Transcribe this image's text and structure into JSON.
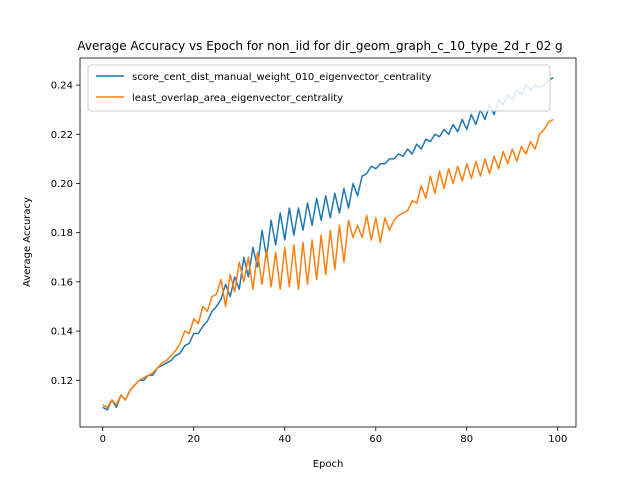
{
  "chart_data": {
    "type": "line",
    "title": "Average Accuracy vs Epoch for non_iid for dir_geom_graph_c_10_type_2d_r_02 g",
    "xlabel": "Epoch",
    "ylabel": "Average Accuracy",
    "xlim": [
      -5,
      104
    ],
    "ylim": [
      0.101,
      0.251
    ],
    "xticks": [
      0,
      20,
      40,
      60,
      80,
      100
    ],
    "xtick_labels": [
      "0",
      "20",
      "40",
      "60",
      "80",
      "100"
    ],
    "yticks": [
      0.12,
      0.14,
      0.16,
      0.18,
      0.2,
      0.22,
      0.24
    ],
    "ytick_labels": [
      "0.12",
      "0.14",
      "0.16",
      "0.18",
      "0.20",
      "0.22",
      "0.24"
    ],
    "grid": false,
    "legend_position": "top-left",
    "x": [
      0,
      1,
      2,
      3,
      4,
      5,
      6,
      7,
      8,
      9,
      10,
      11,
      12,
      13,
      14,
      15,
      16,
      17,
      18,
      19,
      20,
      21,
      22,
      23,
      24,
      25,
      26,
      27,
      28,
      29,
      30,
      31,
      32,
      33,
      34,
      35,
      36,
      37,
      38,
      39,
      40,
      41,
      42,
      43,
      44,
      45,
      46,
      47,
      48,
      49,
      50,
      51,
      52,
      53,
      54,
      55,
      56,
      57,
      58,
      59,
      60,
      61,
      62,
      63,
      64,
      65,
      66,
      67,
      68,
      69,
      70,
      71,
      72,
      73,
      74,
      75,
      76,
      77,
      78,
      79,
      80,
      81,
      82,
      83,
      84,
      85,
      86,
      87,
      88,
      89,
      90,
      91,
      92,
      93,
      94,
      95,
      96,
      97,
      98,
      99
    ],
    "series": [
      {
        "name": "score_cent_dist_manual_weight_010_eigenvector_centrality",
        "color": "#1f77b4",
        "values": [
          0.109,
          0.108,
          0.112,
          0.109,
          0.114,
          0.112,
          0.116,
          0.118,
          0.12,
          0.12,
          0.122,
          0.122,
          0.125,
          0.126,
          0.127,
          0.128,
          0.13,
          0.131,
          0.134,
          0.135,
          0.139,
          0.139,
          0.142,
          0.144,
          0.148,
          0.15,
          0.153,
          0.159,
          0.154,
          0.162,
          0.157,
          0.17,
          0.162,
          0.174,
          0.166,
          0.181,
          0.17,
          0.185,
          0.175,
          0.188,
          0.177,
          0.19,
          0.179,
          0.19,
          0.181,
          0.192,
          0.183,
          0.194,
          0.185,
          0.195,
          0.186,
          0.196,
          0.188,
          0.198,
          0.19,
          0.2,
          0.195,
          0.203,
          0.204,
          0.207,
          0.206,
          0.208,
          0.208,
          0.21,
          0.21,
          0.212,
          0.211,
          0.214,
          0.212,
          0.216,
          0.214,
          0.218,
          0.217,
          0.22,
          0.219,
          0.222,
          0.22,
          0.224,
          0.221,
          0.226,
          0.222,
          0.228,
          0.224,
          0.23,
          0.226,
          0.232,
          0.228,
          0.234,
          0.232,
          0.236,
          0.234,
          0.238,
          0.236,
          0.24,
          0.238,
          0.24,
          0.239,
          0.24,
          0.242,
          0.243
        ]
      },
      {
        "name": "least_overlap_area_eigenvector_centrality",
        "color": "#ff7f0e",
        "values": [
          0.11,
          0.109,
          0.112,
          0.11,
          0.114,
          0.112,
          0.116,
          0.118,
          0.12,
          0.121,
          0.122,
          0.123,
          0.125,
          0.127,
          0.128,
          0.13,
          0.132,
          0.135,
          0.14,
          0.139,
          0.145,
          0.143,
          0.15,
          0.148,
          0.154,
          0.155,
          0.161,
          0.15,
          0.163,
          0.156,
          0.168,
          0.16,
          0.17,
          0.157,
          0.172,
          0.159,
          0.173,
          0.158,
          0.172,
          0.157,
          0.174,
          0.158,
          0.175,
          0.157,
          0.176,
          0.159,
          0.177,
          0.161,
          0.179,
          0.163,
          0.181,
          0.165,
          0.183,
          0.168,
          0.185,
          0.178,
          0.183,
          0.178,
          0.187,
          0.177,
          0.186,
          0.176,
          0.186,
          0.181,
          0.185,
          0.187,
          0.188,
          0.189,
          0.193,
          0.192,
          0.199,
          0.194,
          0.203,
          0.196,
          0.205,
          0.198,
          0.206,
          0.2,
          0.207,
          0.201,
          0.208,
          0.202,
          0.209,
          0.203,
          0.21,
          0.204,
          0.211,
          0.206,
          0.213,
          0.208,
          0.214,
          0.209,
          0.215,
          0.212,
          0.217,
          0.214,
          0.22,
          0.222,
          0.225,
          0.226
        ]
      }
    ]
  }
}
